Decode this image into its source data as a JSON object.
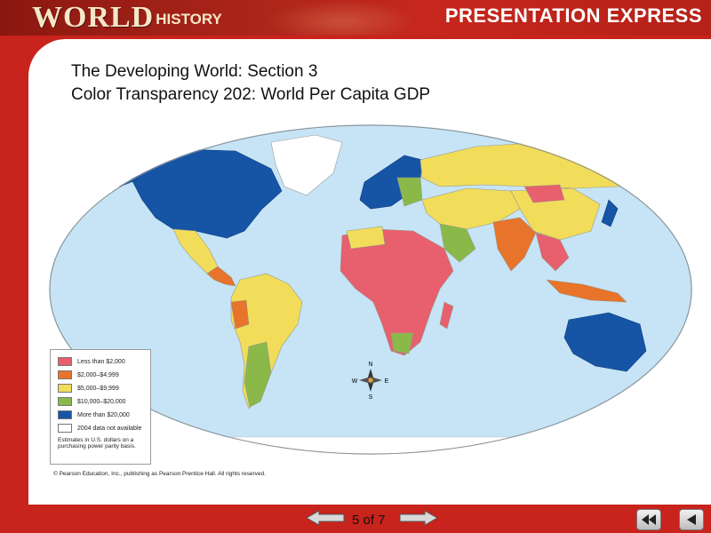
{
  "header": {
    "brand_main": "WORLD",
    "brand_sub": "HISTORY",
    "product": "PRESENTATION EXPRESS"
  },
  "slide": {
    "title_line1": "The Developing World: Section 3",
    "title_line2": "Color Transparency 202: World Per Capita GDP"
  },
  "legend": {
    "items": [
      {
        "label": "Less than $2,000",
        "color": "#e85f6e"
      },
      {
        "label": "$2,000–$4,999",
        "color": "#e8732a"
      },
      {
        "label": "$5,000–$9,999",
        "color": "#f2dd5a"
      },
      {
        "label": "$10,000–$20,000",
        "color": "#8ab94a"
      },
      {
        "label": "More than $20,000",
        "color": "#1655a6"
      },
      {
        "label": "2004 data not available",
        "color": "#ffffff"
      }
    ],
    "note": "Estimates in U.S. dollars on a purchasing power parity basis."
  },
  "compass": {
    "n": "N",
    "s": "S",
    "e": "E",
    "w": "W"
  },
  "copyright": "© Pearson Education, Inc., publishing as Pearson Prentice Hall.  All rights reserved.",
  "footer": {
    "counter": "5 of 7"
  },
  "colors": {
    "ocean": "#c6e4f6",
    "frame_red": "#c8231c"
  }
}
